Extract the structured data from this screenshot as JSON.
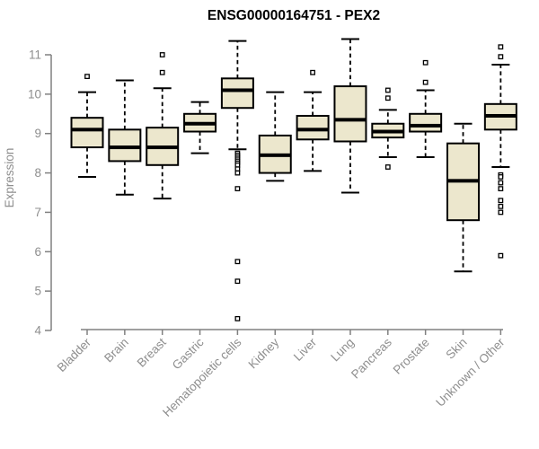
{
  "title": "ENSG00000164751 - PEX2",
  "colors": {
    "box_fill": "#ece7cd",
    "box_stroke": "#000000",
    "median": "#000000",
    "whisker": "#000000",
    "axis_line": "#808080",
    "axis_text": "#8e8e8e",
    "title_text": "#000000",
    "background": "#ffffff"
  },
  "chart_data": {
    "type": "boxplot",
    "title": "ENSG00000164751 - PEX2",
    "xlabel": "",
    "ylabel": "Expression",
    "ylim": [
      4,
      11
    ],
    "yticks": [
      4,
      5,
      6,
      7,
      8,
      9,
      10,
      11
    ],
    "grid": false,
    "legend": null,
    "categories": [
      "Bladder",
      "Brain",
      "Breast",
      "Gastric",
      "Hematopoietic cells",
      "Kidney",
      "Liver",
      "Lung",
      "Pancreas",
      "Prostate",
      "Skin",
      "Unknown / Other"
    ],
    "series": [
      {
        "name": "Bladder",
        "low": 7.9,
        "q1": 8.65,
        "median": 9.1,
        "q3": 9.4,
        "high": 10.05,
        "outliers": [
          10.45
        ]
      },
      {
        "name": "Brain",
        "low": 7.45,
        "q1": 8.3,
        "median": 8.65,
        "q3": 9.1,
        "high": 10.35,
        "outliers": []
      },
      {
        "name": "Breast",
        "low": 7.35,
        "q1": 8.2,
        "median": 8.65,
        "q3": 9.15,
        "high": 10.15,
        "outliers": [
          11.0,
          10.55
        ]
      },
      {
        "name": "Gastric",
        "low": 8.5,
        "q1": 9.05,
        "median": 9.25,
        "q3": 9.5,
        "high": 9.8,
        "outliers": []
      },
      {
        "name": "Hematopoietic cells",
        "low": 8.6,
        "q1": 9.65,
        "median": 10.1,
        "q3": 10.4,
        "high": 11.35,
        "outliers": [
          8.5,
          8.45,
          8.4,
          8.35,
          8.3,
          8.25,
          8.2,
          8.1,
          8.0,
          7.6,
          5.75,
          5.25,
          4.3
        ]
      },
      {
        "name": "Kidney",
        "low": 7.8,
        "q1": 8.0,
        "median": 8.45,
        "q3": 8.95,
        "high": 10.05,
        "outliers": []
      },
      {
        "name": "Liver",
        "low": 8.05,
        "q1": 8.85,
        "median": 9.1,
        "q3": 9.45,
        "high": 10.05,
        "outliers": [
          10.55
        ]
      },
      {
        "name": "Lung",
        "low": 7.5,
        "q1": 8.8,
        "median": 9.35,
        "q3": 10.2,
        "high": 11.4,
        "outliers": []
      },
      {
        "name": "Pancreas",
        "low": 8.4,
        "q1": 8.9,
        "median": 9.05,
        "q3": 9.25,
        "high": 9.6,
        "outliers": [
          10.1,
          9.9,
          8.15
        ]
      },
      {
        "name": "Prostate",
        "low": 8.4,
        "q1": 9.05,
        "median": 9.2,
        "q3": 9.5,
        "high": 10.1,
        "outliers": [
          10.8,
          10.3
        ]
      },
      {
        "name": "Skin",
        "low": 5.5,
        "q1": 6.8,
        "median": 7.8,
        "q3": 8.75,
        "high": 9.25,
        "outliers": []
      },
      {
        "name": "Unknown / Other",
        "low": 8.15,
        "q1": 9.1,
        "median": 9.45,
        "q3": 9.75,
        "high": 10.75,
        "outliers": [
          11.2,
          10.95,
          7.95,
          7.9,
          7.75,
          7.6,
          7.3,
          7.15,
          7.0,
          5.9
        ]
      }
    ]
  }
}
